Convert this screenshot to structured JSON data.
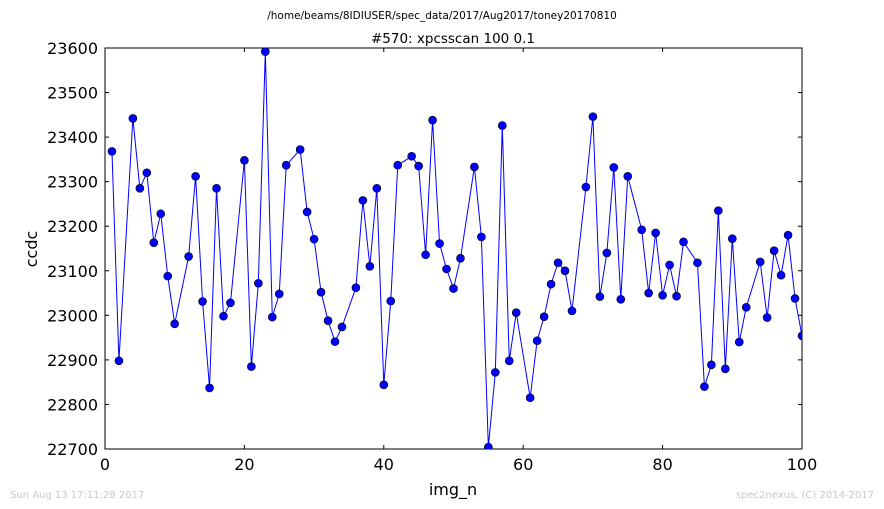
{
  "header": {
    "path": "/home/beams/8IDIUSER/spec_data/2017/Aug2017/toney20170810"
  },
  "footer": {
    "timestamp": "Sun Aug 13 17:11:28 2017",
    "credit": "spec2nexus, (C) 2014-2017"
  },
  "chart_data": {
    "type": "line",
    "title": "#570: xpcsscan 100 0.1",
    "xlabel": "img_n",
    "ylabel": "ccdc",
    "xlim": [
      0,
      100
    ],
    "ylim": [
      22700,
      23600
    ],
    "xticks": [
      0,
      20,
      40,
      60,
      80,
      100
    ],
    "yticks": [
      22700,
      22800,
      22900,
      23000,
      23100,
      23200,
      23300,
      23400,
      23500,
      23600
    ],
    "grid": false,
    "marker": "circle",
    "line_color": "#0000ff",
    "marker_color": "#0000ff",
    "x": [
      1,
      2,
      4,
      5,
      6,
      7,
      8,
      9,
      10,
      12,
      13,
      14,
      15,
      16,
      17,
      18,
      20,
      21,
      22,
      23,
      24,
      25,
      26,
      28,
      29,
      30,
      31,
      32,
      33,
      34,
      36,
      37,
      38,
      39,
      40,
      41,
      42,
      44,
      45,
      46,
      47,
      48,
      49,
      50,
      51,
      53,
      54,
      55,
      56,
      57,
      58,
      59,
      61,
      62,
      63,
      64,
      65,
      66,
      67,
      69,
      70,
      71,
      72,
      73,
      74,
      75,
      77,
      78,
      79,
      80,
      81,
      82,
      83,
      85,
      86,
      87,
      88,
      89,
      90,
      91,
      92,
      94,
      95,
      96,
      97,
      98,
      99,
      100
    ],
    "y": [
      23368,
      22898,
      23442,
      23285,
      23320,
      23163,
      23228,
      23088,
      22981,
      23132,
      23312,
      23031,
      22837,
      23285,
      22998,
      23028,
      23348,
      22885,
      23072,
      23592,
      22996,
      23048,
      23337,
      23372,
      23232,
      23171,
      23052,
      22988,
      22941,
      22974,
      23062,
      23258,
      23110,
      23285,
      22844,
      23032,
      23337,
      23357,
      23335,
      23136,
      23438,
      23161,
      23104,
      23060,
      23128,
      23333,
      23176,
      22704,
      22872,
      23426,
      22898,
      23006,
      22815,
      22943,
      22997,
      23070,
      23118,
      23100,
      23010,
      23288,
      23446,
      23042,
      23140,
      23332,
      23036,
      23312,
      23192,
      23050,
      23185,
      23045,
      23113,
      23043,
      23165,
      23118,
      22840,
      22889,
      23235,
      22880,
      23172,
      22940,
      23018,
      23120,
      22995,
      23145,
      23090,
      23180,
      23038,
      22954
    ]
  }
}
